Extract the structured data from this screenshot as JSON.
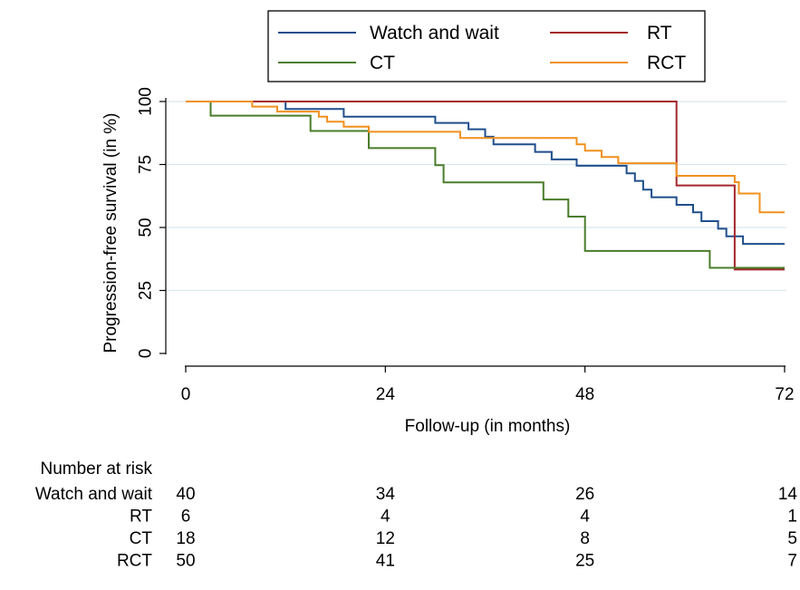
{
  "chart_data": {
    "type": "line",
    "step": true,
    "ylabel": "Progression-free survival (in %)",
    "xlabel": "Follow-up (in months)",
    "xlim": [
      0,
      72
    ],
    "ylim": [
      0,
      100
    ],
    "xticks": [
      0,
      24,
      48,
      72
    ],
    "yticks": [
      0,
      25,
      50,
      75,
      100
    ],
    "grid": "horizontal",
    "legend_position": "top",
    "series": [
      {
        "name": "Watch and wait",
        "color": "#1f4e8c",
        "points": [
          [
            0,
            100
          ],
          [
            12,
            100
          ],
          [
            12,
            97
          ],
          [
            19,
            97
          ],
          [
            19,
            94
          ],
          [
            30,
            94
          ],
          [
            30,
            91.5
          ],
          [
            34,
            91.5
          ],
          [
            34,
            89
          ],
          [
            36,
            89
          ],
          [
            36,
            86
          ],
          [
            37,
            86
          ],
          [
            37,
            83
          ],
          [
            42,
            83
          ],
          [
            42,
            80
          ],
          [
            44,
            80
          ],
          [
            44,
            77
          ],
          [
            47,
            77
          ],
          [
            47,
            74.5
          ],
          [
            53,
            74.5
          ],
          [
            53,
            71.5
          ],
          [
            54,
            71.5
          ],
          [
            54,
            68.5
          ],
          [
            55,
            68.5
          ],
          [
            55,
            65
          ],
          [
            56,
            65
          ],
          [
            56,
            62
          ],
          [
            59,
            62
          ],
          [
            59,
            59
          ],
          [
            61,
            59
          ],
          [
            61,
            56
          ],
          [
            62,
            56
          ],
          [
            62,
            52.5
          ],
          [
            64,
            52.5
          ],
          [
            64,
            49.5
          ],
          [
            65,
            49.5
          ],
          [
            65,
            46.5
          ],
          [
            67,
            46.5
          ],
          [
            67,
            43.5
          ],
          [
            72,
            43.5
          ]
        ]
      },
      {
        "name": "RT",
        "color": "#a3262a",
        "points": [
          [
            0,
            100
          ],
          [
            59,
            100
          ],
          [
            59,
            66.7
          ],
          [
            66,
            66.7
          ],
          [
            66,
            33.3
          ],
          [
            72,
            33.3
          ]
        ]
      },
      {
        "name": "CT",
        "color": "#4a7c2a",
        "points": [
          [
            0,
            100
          ],
          [
            3,
            100
          ],
          [
            3,
            94.4
          ],
          [
            15,
            94.4
          ],
          [
            15,
            88.3
          ],
          [
            22,
            88.3
          ],
          [
            22,
            81.5
          ],
          [
            30,
            81.5
          ],
          [
            30,
            74.7
          ],
          [
            31,
            74.7
          ],
          [
            31,
            67.9
          ],
          [
            43,
            67.9
          ],
          [
            43,
            61.1
          ],
          [
            46,
            61.1
          ],
          [
            46,
            54.3
          ],
          [
            48,
            54.3
          ],
          [
            48,
            40.7
          ],
          [
            63,
            40.7
          ],
          [
            63,
            34
          ],
          [
            72,
            34
          ]
        ]
      },
      {
        "name": "RCT",
        "color": "#f0901e",
        "points": [
          [
            0,
            100
          ],
          [
            8,
            100
          ],
          [
            8,
            98
          ],
          [
            11,
            98
          ],
          [
            11,
            96
          ],
          [
            16,
            96
          ],
          [
            16,
            94
          ],
          [
            17,
            94
          ],
          [
            17,
            92
          ],
          [
            19,
            92
          ],
          [
            19,
            90
          ],
          [
            22,
            90
          ],
          [
            22,
            88
          ],
          [
            33,
            88
          ],
          [
            33,
            85.5
          ],
          [
            47,
            85.5
          ],
          [
            47,
            83
          ],
          [
            48,
            83
          ],
          [
            48,
            80.5
          ],
          [
            50,
            80.5
          ],
          [
            50,
            78
          ],
          [
            52,
            78
          ],
          [
            52,
            75.5
          ],
          [
            59,
            75.5
          ],
          [
            59,
            70.5
          ],
          [
            66,
            70.5
          ],
          [
            66,
            68
          ],
          [
            66.5,
            68
          ],
          [
            66.5,
            63.5
          ],
          [
            69,
            63.5
          ],
          [
            69,
            56
          ],
          [
            72,
            56
          ]
        ]
      }
    ],
    "risk_table": {
      "title": "Number at risk",
      "columns": [
        0,
        24,
        48,
        72
      ],
      "rows": [
        {
          "label": "Watch and wait",
          "values": [
            40,
            34,
            26,
            14
          ]
        },
        {
          "label": "RT",
          "values": [
            6,
            4,
            4,
            1
          ]
        },
        {
          "label": "CT",
          "values": [
            18,
            12,
            8,
            5
          ]
        },
        {
          "label": "RCT",
          "values": [
            50,
            41,
            25,
            7
          ]
        }
      ]
    }
  }
}
